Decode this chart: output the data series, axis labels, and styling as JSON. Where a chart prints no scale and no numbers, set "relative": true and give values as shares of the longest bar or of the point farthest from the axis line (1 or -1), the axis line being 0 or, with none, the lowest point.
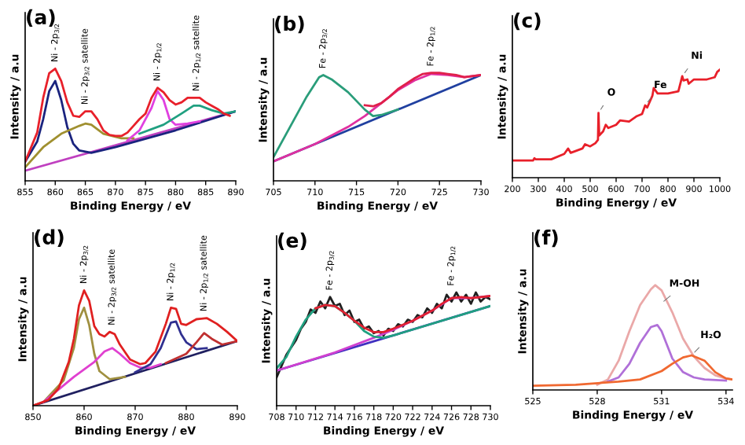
{
  "chart_data": [
    {
      "type": "line",
      "title": "(a)",
      "xlabel": "Binding Energy / eV",
      "ylabel": "Intensity / a.u",
      "relative": true,
      "xlim": [
        855,
        890
      ],
      "xticks": [
        855,
        860,
        865,
        870,
        875,
        880,
        885,
        890
      ],
      "legend": false,
      "grid": false,
      "marker": "none",
      "series": [
        {
          "color": "#c040c0",
          "x": [
            855,
            890
          ],
          "values": [
            0.09,
            0.62
          ]
        },
        {
          "color": "#1a237e",
          "x": [
            855,
            857,
            858,
            859,
            860,
            861,
            862,
            863,
            864,
            866,
            870,
            880,
            890
          ],
          "values": [
            0.17,
            0.35,
            0.55,
            0.8,
            0.89,
            0.72,
            0.48,
            0.33,
            0.27,
            0.25,
            0.3,
            0.45,
            0.62
          ]
        },
        {
          "color": "#a09030",
          "x": [
            855,
            858,
            861,
            864,
            865,
            866,
            868,
            871,
            873
          ],
          "values": [
            0.12,
            0.3,
            0.42,
            0.49,
            0.51,
            0.5,
            0.42,
            0.38,
            0.38
          ]
        },
        {
          "color": "#e040e0",
          "x": [
            872,
            874,
            876,
            877,
            878,
            879,
            880,
            882,
            884
          ],
          "values": [
            0.36,
            0.45,
            0.65,
            0.8,
            0.72,
            0.55,
            0.5,
            0.51,
            0.53
          ]
        },
        {
          "color": "#20a080",
          "x": [
            874,
            878,
            881,
            883,
            884,
            886,
            888,
            890
          ],
          "values": [
            0.42,
            0.5,
            0.6,
            0.67,
            0.67,
            0.63,
            0.6,
            0.62
          ]
        },
        {
          "color": "#e8202a",
          "x": [
            855,
            857,
            858,
            859,
            860,
            861,
            862,
            863,
            864,
            865,
            866,
            867,
            868,
            869,
            870,
            871,
            872,
            873,
            874,
            875,
            876,
            877,
            878,
            879,
            880,
            881,
            882,
            883,
            884,
            885,
            886,
            887,
            888,
            889
          ],
          "values": [
            0.17,
            0.43,
            0.74,
            0.96,
            1.0,
            0.89,
            0.7,
            0.58,
            0.57,
            0.62,
            0.62,
            0.55,
            0.45,
            0.41,
            0.4,
            0.4,
            0.43,
            0.49,
            0.55,
            0.6,
            0.74,
            0.83,
            0.79,
            0.72,
            0.68,
            0.7,
            0.74,
            0.74,
            0.74,
            0.7,
            0.67,
            0.64,
            0.6,
            0.58
          ]
        }
      ],
      "annotations": [
        {
          "text": "Ni - 2p$_{3/2}$",
          "x": 860,
          "y": 1.0
        },
        {
          "text": "Ni - 2p$_{3/2}$ satellite",
          "x": 865,
          "y": 0.62
        },
        {
          "text": "Ni - 2p$_{1/2}$",
          "x": 877,
          "y": 0.83
        },
        {
          "text": "Ni - 2p$_{1/2}$ satellite",
          "x": 883.5,
          "y": 0.74
        }
      ]
    },
    {
      "type": "line",
      "title": "(b)",
      "xlabel": "Binding Energy / eV",
      "ylabel": "Intensity / a.u",
      "relative": true,
      "xlim": [
        705,
        730
      ],
      "xticks": [
        705,
        710,
        715,
        720,
        725,
        730
      ],
      "legend": false,
      "grid": false,
      "marker": "none",
      "series": [
        {
          "color": "#2040a0",
          "x": [
            705,
            730
          ],
          "values": [
            0.18,
            0.98
          ]
        },
        {
          "color": "#e030a0",
          "x": [
            705,
            710,
            714,
            716,
            718,
            720,
            722,
            724,
            726,
            728,
            730
          ],
          "values": [
            0.18,
            0.34,
            0.5,
            0.6,
            0.72,
            0.84,
            0.93,
            0.99,
            0.98,
            0.96,
            0.98
          ]
        },
        {
          "color": "#e0204a",
          "x": [
            716,
            717,
            718,
            719,
            720,
            721,
            722,
            723,
            724,
            725,
            726,
            727,
            728,
            730
          ],
          "values": [
            0.7,
            0.69,
            0.72,
            0.78,
            0.85,
            0.9,
            0.95,
            0.99,
            1.0,
            1.0,
            0.99,
            0.98,
            0.96,
            0.98
          ]
        },
        {
          "color": "#2a9d7a",
          "x": [
            705,
            707,
            709,
            710.5,
            711,
            712,
            713,
            714,
            715,
            716,
            717,
            718,
            720
          ],
          "values": [
            0.22,
            0.5,
            0.78,
            0.96,
            0.98,
            0.94,
            0.88,
            0.82,
            0.74,
            0.66,
            0.6,
            0.61,
            0.66
          ]
        }
      ],
      "annotations": [
        {
          "text": "Fe - 2p$_{3/2}$",
          "x": 711,
          "y": 0.98
        },
        {
          "text": "Fe - 2p$_{1/2}$",
          "x": 724,
          "y": 1.0
        }
      ]
    },
    {
      "type": "line",
      "title": "(c)",
      "xlabel": "Binding Energy / eV",
      "ylabel": "Intensity / a.u",
      "relative": true,
      "xlim": [
        200,
        1000
      ],
      "xticks": [
        200,
        300,
        400,
        500,
        600,
        700,
        800,
        900,
        1000
      ],
      "legend": false,
      "grid": false,
      "marker": "none",
      "series": [
        {
          "color": "#e8202a",
          "x": [
            200,
            280,
            285,
            290,
            350,
            400,
            415,
            425,
            470,
            480,
            500,
            520,
            530,
            532,
            535,
            550,
            560,
            570,
            600,
            615,
            650,
            680,
            700,
            712,
            720,
            740,
            745,
            760,
            800,
            840,
            855,
            860,
            875,
            880,
            900,
            950,
            980,
            990,
            1000
          ],
          "values": [
            0.16,
            0.16,
            0.18,
            0.17,
            0.17,
            0.22,
            0.27,
            0.23,
            0.27,
            0.31,
            0.29,
            0.32,
            0.35,
            0.6,
            0.39,
            0.43,
            0.49,
            0.46,
            0.49,
            0.53,
            0.52,
            0.57,
            0.59,
            0.67,
            0.65,
            0.76,
            0.83,
            0.78,
            0.78,
            0.8,
            0.94,
            0.9,
            0.91,
            0.87,
            0.91,
            0.91,
            0.93,
            0.98,
            1.0
          ]
        }
      ],
      "annotations": [
        {
          "text": "O",
          "x": 532,
          "y": 0.6
        },
        {
          "text": "Fe",
          "x": 712,
          "y": 0.67
        },
        {
          "text": "Ni",
          "x": 855,
          "y": 0.94
        }
      ]
    },
    {
      "type": "line",
      "title": "(d)",
      "xlabel": "Binding Energy / eV",
      "ylabel": "Intensity / a.u",
      "relative": true,
      "xlim": [
        850,
        890
      ],
      "xticks": [
        850,
        860,
        870,
        880,
        890
      ],
      "legend": false,
      "grid": false,
      "marker": "none",
      "series": [
        {
          "color": "#202060",
          "x": [
            850,
            890
          ],
          "values": [
            0.0,
            0.56
          ]
        },
        {
          "color": "#a09040",
          "x": [
            852,
            856,
            858,
            859,
            860,
            861,
            862,
            863,
            865,
            868
          ],
          "values": [
            0.03,
            0.22,
            0.5,
            0.75,
            0.85,
            0.7,
            0.45,
            0.3,
            0.23,
            0.25
          ]
        },
        {
          "color": "#e040d0",
          "x": [
            852,
            858,
            862,
            864,
            865.5,
            867,
            869,
            871,
            873,
            875
          ],
          "values": [
            0.03,
            0.25,
            0.38,
            0.47,
            0.5,
            0.45,
            0.37,
            0.33,
            0.33,
            0.36
          ]
        },
        {
          "color": "#303090",
          "x": [
            870,
            873,
            875,
            877,
            878,
            879,
            880,
            882,
            884
          ],
          "values": [
            0.29,
            0.36,
            0.5,
            0.72,
            0.73,
            0.62,
            0.55,
            0.49,
            0.5
          ]
        },
        {
          "color": "#c03030",
          "x": [
            876,
            880,
            882,
            883.5,
            885,
            887,
            890
          ],
          "values": [
            0.37,
            0.45,
            0.55,
            0.63,
            0.58,
            0.53,
            0.56
          ]
        },
        {
          "color": "#e02020",
          "x": [
            850,
            853,
            855,
            857,
            858,
            859,
            860,
            861,
            862,
            863,
            864,
            865,
            866,
            867,
            869,
            871,
            872,
            874,
            876,
            877,
            878,
            879,
            880,
            882,
            884,
            886,
            888,
            890
          ],
          "values": [
            0.0,
            0.05,
            0.15,
            0.38,
            0.58,
            0.87,
            1.0,
            0.91,
            0.69,
            0.62,
            0.6,
            0.64,
            0.62,
            0.53,
            0.4,
            0.36,
            0.37,
            0.47,
            0.71,
            0.85,
            0.84,
            0.71,
            0.7,
            0.75,
            0.76,
            0.71,
            0.64,
            0.56
          ]
        }
      ],
      "annotations": [
        {
          "text": "Ni - 2p$_{3/2}$",
          "x": 860,
          "y": 1.0
        },
        {
          "text": "Ni - 2p$_{3/2}$ satellite",
          "x": 865.5,
          "y": 0.64
        },
        {
          "text": "Ni - 2p$_{1/2}$",
          "x": 877,
          "y": 0.85
        },
        {
          "text": "Ni - 2p$_{1/2}$ satellite",
          "x": 883.5,
          "y": 0.76
        }
      ]
    },
    {
      "type": "line",
      "title": "(e)",
      "xlabel": "Binding Energy / eV",
      "ylabel": "Intensity / a.u",
      "relative": true,
      "xlim": [
        708,
        730
      ],
      "xticks": [
        708,
        710,
        712,
        714,
        716,
        718,
        720,
        722,
        724,
        726,
        728,
        730
      ],
      "legend": false,
      "grid": false,
      "marker": "none",
      "series": [
        {
          "color": "#202020",
          "x": [
            708,
            708.5,
            709,
            710,
            710.5,
            711,
            711.5,
            712,
            712.5,
            713,
            713.5,
            714,
            714.5,
            715,
            715.5,
            716,
            716.5,
            717,
            717.5,
            718,
            718.5,
            719,
            719.5,
            720,
            720.5,
            721,
            721.5,
            722,
            722.5,
            723,
            723.5,
            724,
            724.5,
            725,
            725.5,
            726,
            726.5,
            727,
            727.5,
            728,
            728.5,
            729,
            729.5,
            730
          ],
          "values": [
            0.25,
            0.35,
            0.45,
            0.58,
            0.68,
            0.74,
            0.85,
            0.82,
            0.92,
            0.86,
            0.96,
            0.88,
            0.9,
            0.8,
            0.84,
            0.74,
            0.76,
            0.68,
            0.7,
            0.64,
            0.66,
            0.62,
            0.68,
            0.66,
            0.72,
            0.7,
            0.76,
            0.74,
            0.8,
            0.78,
            0.86,
            0.82,
            0.9,
            0.86,
            0.98,
            0.92,
            1.0,
            0.92,
            0.98,
            0.9,
            1.0,
            0.92,
            0.96,
            0.94
          ]
        },
        {
          "color": "#4030c0",
          "x": [
            708,
            730
          ],
          "values": [
            0.31,
            0.88
          ]
        },
        {
          "color": "#d040d0",
          "x": [
            708,
            714,
            718,
            720,
            722,
            724,
            726,
            728,
            730
          ],
          "values": [
            0.31,
            0.47,
            0.6,
            0.67,
            0.75,
            0.84,
            0.95,
            0.95,
            0.97
          ]
        },
        {
          "color": "#20a080",
          "x": [
            708,
            709,
            710,
            711,
            712,
            713,
            714,
            715,
            716,
            717,
            718,
            719,
            720,
            730
          ],
          "values": [
            0.33,
            0.43,
            0.61,
            0.76,
            0.86,
            0.89,
            0.88,
            0.82,
            0.75,
            0.66,
            0.61,
            0.6,
            0.62,
            0.88
          ]
        },
        {
          "color": "#e02030",
          "x": [
            712,
            713,
            714,
            715,
            716,
            717,
            718,
            719,
            720,
            722,
            724,
            725,
            726,
            727,
            728,
            729,
            730
          ],
          "values": [
            0.86,
            0.89,
            0.88,
            0.82,
            0.75,
            0.69,
            0.65,
            0.65,
            0.68,
            0.75,
            0.84,
            0.9,
            0.95,
            0.96,
            0.95,
            0.96,
            0.97
          ]
        }
      ],
      "annotations": [
        {
          "text": "Fe - 2p$_{3/2}$",
          "x": 713.5,
          "y": 0.96
        },
        {
          "text": "Fe - 2p$_{1/2}$",
          "x": 726,
          "y": 1.0
        }
      ]
    },
    {
      "type": "line",
      "title": "(f)",
      "xlabel": "Binding Energy / eV",
      "ylabel": "Intensity / a.u",
      "relative": true,
      "xlim": [
        525,
        534.3
      ],
      "xticks": [
        525,
        528,
        531,
        534
      ],
      "legend": false,
      "grid": false,
      "marker": "none",
      "series": [
        {
          "color": "#eaa8a8",
          "x": [
            528,
            528.5,
            529,
            529.5,
            530,
            530.5,
            530.7,
            531,
            531.5,
            532,
            532.5,
            533,
            533.5,
            534,
            534.3
          ],
          "values": [
            0.05,
            0.1,
            0.28,
            0.56,
            0.81,
            0.96,
            1.0,
            0.95,
            0.74,
            0.49,
            0.32,
            0.21,
            0.14,
            0.11,
            0.1
          ]
        },
        {
          "color": "#b070d8",
          "x": [
            528.5,
            529,
            529.5,
            530,
            530.5,
            530.8,
            531,
            531.5,
            532,
            532.5,
            533,
            534
          ],
          "values": [
            0.08,
            0.12,
            0.25,
            0.45,
            0.6,
            0.62,
            0.56,
            0.3,
            0.17,
            0.12,
            0.1,
            0.09
          ]
        },
        {
          "color": "#f06830",
          "x": [
            525,
            527,
            529,
            530,
            531,
            531.5,
            532,
            532.4,
            533,
            533.5,
            534,
            534.3
          ],
          "values": [
            0.04,
            0.05,
            0.08,
            0.1,
            0.18,
            0.25,
            0.31,
            0.33,
            0.28,
            0.17,
            0.11,
            0.1
          ]
        }
      ],
      "annotations": [
        {
          "text": "M-OH",
          "x": 530.95,
          "y": 0.82
        },
        {
          "text": "H₂O",
          "x": 532.4,
          "y": 0.33
        }
      ]
    }
  ]
}
